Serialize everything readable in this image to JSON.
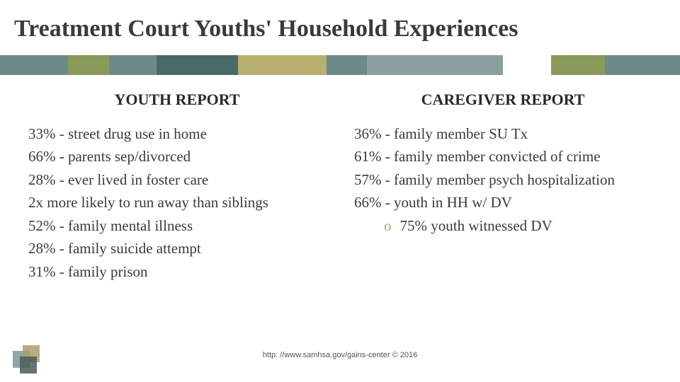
{
  "title": "Treatment Court Youths' Household Experiences",
  "stripe": {
    "background": "#6c8a8a",
    "segments": [
      {
        "color": "#6c8a8a",
        "width": 10
      },
      {
        "color": "#8a9a5a",
        "width": 6
      },
      {
        "color": "#6c8a8a",
        "width": 7
      },
      {
        "color": "#4a6a6a",
        "width": 12
      },
      {
        "color": "#b8b070",
        "width": 13
      },
      {
        "color": "#6c8a8a",
        "width": 6
      },
      {
        "color": "#8aa0a0",
        "width": 20
      },
      {
        "color": "#ffffff",
        "width": 7
      },
      {
        "color": "#8a9a5a",
        "width": 8
      },
      {
        "color": "#6c8a8a",
        "width": 11
      }
    ]
  },
  "columns": {
    "left": {
      "header": "YOUTH REPORT",
      "items": [
        "33% - street drug use in home",
        "66% - parents sep/divorced",
        "28% - ever lived in foster care",
        "2x more likely to run away than siblings",
        "52% - family mental illness",
        "28% - family suicide attempt",
        "31% - family prison"
      ]
    },
    "right": {
      "header": "CAREGIVER REPORT",
      "items": [
        "36% - family member SU Tx",
        "61% - family member convicted of crime",
        "57% - family member psych hospitalization",
        "66% - youth in HH w/ DV"
      ],
      "subitem": "75% youth witnessed DV"
    }
  },
  "footer": "http: //www.samhsa.gov/gains-center © 2016",
  "logo_colors": {
    "teal": "#7a9898",
    "olive": "#a8a068",
    "dark": "#4a5a5a"
  }
}
